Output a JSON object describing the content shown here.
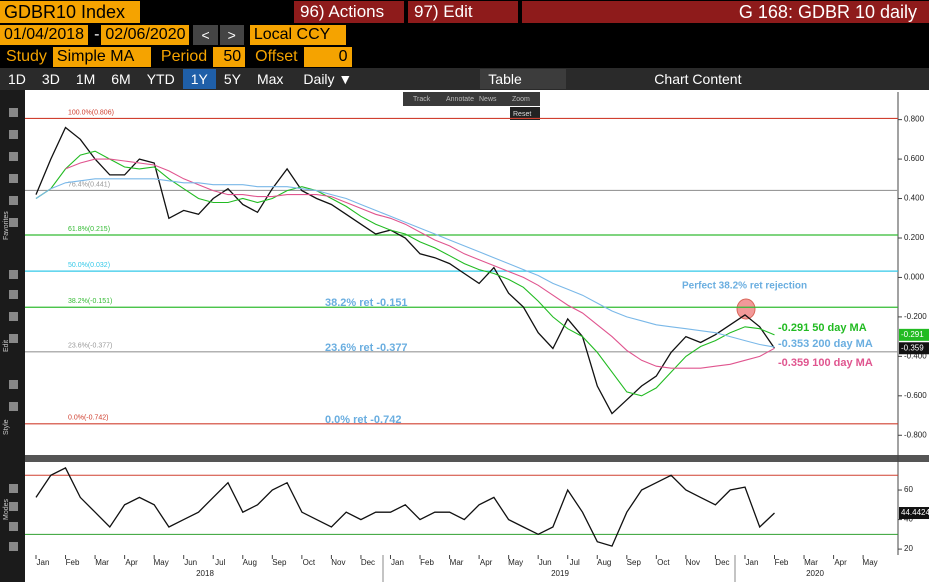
{
  "header": {
    "ticker": "GDBR10 Index",
    "actions": "96) Actions",
    "edit": "97) Edit",
    "page": "G 168: GDBR 10 daily"
  },
  "controls": {
    "start": "01/04/2018",
    "dash": "-",
    "end": "02/06/2020",
    "prev": "<",
    "next": ">",
    "currency": "Local CCY",
    "study_label": "Study",
    "study": "Simple MA",
    "period_label": "Period",
    "period": "50",
    "offset_label": "Offset",
    "offset": "0"
  },
  "toolbar": {
    "ranges": [
      "1D",
      "3D",
      "1M",
      "6M",
      "YTD",
      "1Y",
      "5Y",
      "Max"
    ],
    "active": "1Y",
    "frequency": "Daily ▼",
    "table": "Table",
    "chart_content": "Chart Content"
  },
  "overlay": {
    "tools": [
      "Track",
      "Annotate",
      "News",
      "Zoom"
    ],
    "reset": "Reset"
  },
  "side_labels": [
    "Favorites",
    "Edit",
    "Style",
    "Modes"
  ],
  "chart_data": {
    "type": "line",
    "categories": [
      "Jan",
      null,
      "Feb",
      null,
      "Mar",
      null,
      "Apr",
      null,
      "May",
      null,
      "Jun",
      null,
      "Jul",
      null,
      "Aug",
      null,
      "Sep",
      null,
      "Oct",
      null,
      "Nov",
      null,
      "Dec",
      null,
      "Jan",
      null,
      "Feb",
      null,
      "Mar",
      null,
      "Apr",
      null,
      "May",
      null,
      "Jun",
      null,
      "Jul",
      null,
      "Aug",
      null,
      "Sep",
      null,
      "Oct",
      null,
      "Nov",
      null,
      "Dec",
      null,
      "Jan",
      null,
      "Feb",
      null,
      "Mar",
      null,
      "Apr",
      null,
      "May",
      null
    ],
    "years": [
      "2018",
      "2019",
      "2020"
    ],
    "series": [
      {
        "color": "#111111",
        "values": [
          0.42,
          0.6,
          0.76,
          0.7,
          0.6,
          0.52,
          0.52,
          0.6,
          0.58,
          0.3,
          0.34,
          0.32,
          0.4,
          0.45,
          0.37,
          0.33,
          0.45,
          0.55,
          0.44,
          0.4,
          0.37,
          0.32,
          0.27,
          0.22,
          0.24,
          0.2,
          0.12,
          0.1,
          0.07,
          0.02,
          -0.03,
          0.05,
          -0.08,
          -0.15,
          -0.28,
          -0.36,
          -0.21,
          -0.3,
          -0.55,
          -0.69,
          -0.62,
          -0.55,
          -0.5,
          -0.38,
          -0.3,
          -0.33,
          -0.29,
          -0.24,
          -0.19,
          -0.25,
          -0.359,
          null,
          null,
          null,
          null,
          null,
          null,
          null
        ]
      },
      {
        "color": "#22bb22",
        "values": [
          0.4,
          0.45,
          0.55,
          0.62,
          0.64,
          0.6,
          0.56,
          0.55,
          0.56,
          0.5,
          0.45,
          0.4,
          0.38,
          0.38,
          0.4,
          0.38,
          0.4,
          0.44,
          0.46,
          0.44,
          0.4,
          0.36,
          0.31,
          0.27,
          0.24,
          0.22,
          0.18,
          0.15,
          0.11,
          0.07,
          0.04,
          0.02,
          -0.01,
          -0.05,
          -0.12,
          -0.2,
          -0.26,
          -0.3,
          -0.38,
          -0.48,
          -0.58,
          -0.6,
          -0.56,
          -0.48,
          -0.4,
          -0.35,
          -0.32,
          -0.28,
          -0.25,
          -0.26,
          -0.291,
          null,
          null,
          null,
          null,
          null,
          null,
          null
        ]
      },
      {
        "color": "#e0558f",
        "values": [
          null,
          null,
          0.55,
          0.58,
          0.6,
          0.6,
          0.59,
          0.58,
          0.57,
          0.54,
          0.5,
          0.47,
          0.44,
          0.42,
          0.42,
          0.41,
          0.41,
          0.42,
          0.42,
          0.42,
          0.41,
          0.38,
          0.35,
          0.32,
          0.3,
          0.27,
          0.23,
          0.19,
          0.16,
          0.12,
          0.09,
          0.06,
          0.03,
          0.0,
          -0.04,
          -0.09,
          -0.14,
          -0.18,
          -0.24,
          -0.3,
          -0.37,
          -0.42,
          -0.45,
          -0.46,
          -0.46,
          -0.46,
          -0.45,
          -0.44,
          -0.42,
          -0.4,
          -0.359,
          null,
          null,
          null,
          null,
          null,
          null,
          null
        ]
      },
      {
        "color": "#7ab8e8",
        "values": [
          0.4,
          0.45,
          0.48,
          0.49,
          0.5,
          0.5,
          0.5,
          0.5,
          0.5,
          0.49,
          0.48,
          0.48,
          0.47,
          0.47,
          0.47,
          0.46,
          0.46,
          0.46,
          0.45,
          0.44,
          0.42,
          0.4,
          0.37,
          0.34,
          0.31,
          0.28,
          0.25,
          0.22,
          0.19,
          0.16,
          0.13,
          0.1,
          0.07,
          0.04,
          0.01,
          -0.03,
          -0.06,
          -0.09,
          -0.13,
          -0.17,
          -0.2,
          -0.22,
          -0.24,
          -0.25,
          -0.26,
          -0.27,
          -0.28,
          -0.3,
          -0.32,
          -0.34,
          -0.353,
          null,
          null,
          null,
          null,
          null,
          null,
          null
        ]
      },
      {
        "color": "#111111",
        "axis": "y2",
        "values": [
          55,
          70,
          75,
          55,
          45,
          35,
          50,
          55,
          50,
          35,
          40,
          45,
          55,
          65,
          45,
          50,
          60,
          65,
          45,
          40,
          35,
          45,
          40,
          45,
          45,
          50,
          40,
          45,
          45,
          40,
          50,
          55,
          40,
          35,
          30,
          35,
          60,
          45,
          25,
          22,
          45,
          60,
          65,
          70,
          60,
          55,
          50,
          60,
          62,
          35,
          44.4424,
          null,
          null,
          null,
          null,
          null,
          null,
          null
        ]
      }
    ],
    "ylim": [
      -0.9,
      0.94
    ],
    "yticks": [
      {
        "value": 0.8,
        "label": "0.800"
      },
      {
        "value": 0.6,
        "label": "0.600"
      },
      {
        "value": 0.4,
        "label": "0.400"
      },
      {
        "value": 0.2,
        "label": "0.200"
      },
      {
        "value": 0,
        "label": "0.000"
      },
      {
        "value": -0.2,
        "label": "-0.200"
      },
      {
        "value": -0.4,
        "label": "-0.400"
      },
      {
        "value": -0.6,
        "label": "-0.600"
      },
      {
        "value": -0.8,
        "label": "-0.800"
      }
    ],
    "y2lim": [
      16,
      79
    ],
    "y2ticks": [
      60,
      40,
      20
    ],
    "rsi_levels": [
      {
        "value": 70,
        "color": "#d04030"
      },
      {
        "value": 30,
        "color": "#30a030"
      }
    ],
    "fib_levels": [
      {
        "value": 0.806,
        "label": "100.0%(0.806)",
        "color": "#d04030"
      },
      {
        "value": 0.441,
        "label": "76.4%(0.441)",
        "color": "#999999"
      },
      {
        "value": 0.215,
        "label": "61.8%(0.215)",
        "color": "#33bb33"
      },
      {
        "value": 0.032,
        "label": "50.0%(0.032)",
        "color": "#33c8e8"
      },
      {
        "value": -0.151,
        "label": "38.2%(-0.151)",
        "color": "#33bb33"
      },
      {
        "value": -0.377,
        "label": "23.6%(-0.377)",
        "color": "#999999"
      },
      {
        "value": -0.742,
        "label": "0.0%(-0.742)",
        "color": "#d04030"
      }
    ],
    "annotations": [
      {
        "text": "Perfect 38.2% ret rejection",
        "color": "#6aaee0"
      },
      {
        "text": "38.2% ret -0.151",
        "color": "#6aaee0"
      },
      {
        "text": "23.6% ret -0.377",
        "color": "#6aaee0"
      },
      {
        "text": "0.0% ret -0.742",
        "color": "#6aaee0"
      },
      {
        "text": "-0.291 50 day MA",
        "color": "#22bb22"
      },
      {
        "text": "-0.353 200 day MA",
        "color": "#6aaee0"
      },
      {
        "text": "-0.359 100 day MA",
        "color": "#e0558f"
      }
    ],
    "end_labels": [
      {
        "value": -0.291,
        "label": "-0.291",
        "color": "#22bb22"
      },
      {
        "value": -0.359,
        "label": "-0.359",
        "color": "#111111"
      },
      {
        "value": 44.4424,
        "label": "44.4424",
        "color": "#111111",
        "axis": "y2"
      }
    ]
  }
}
